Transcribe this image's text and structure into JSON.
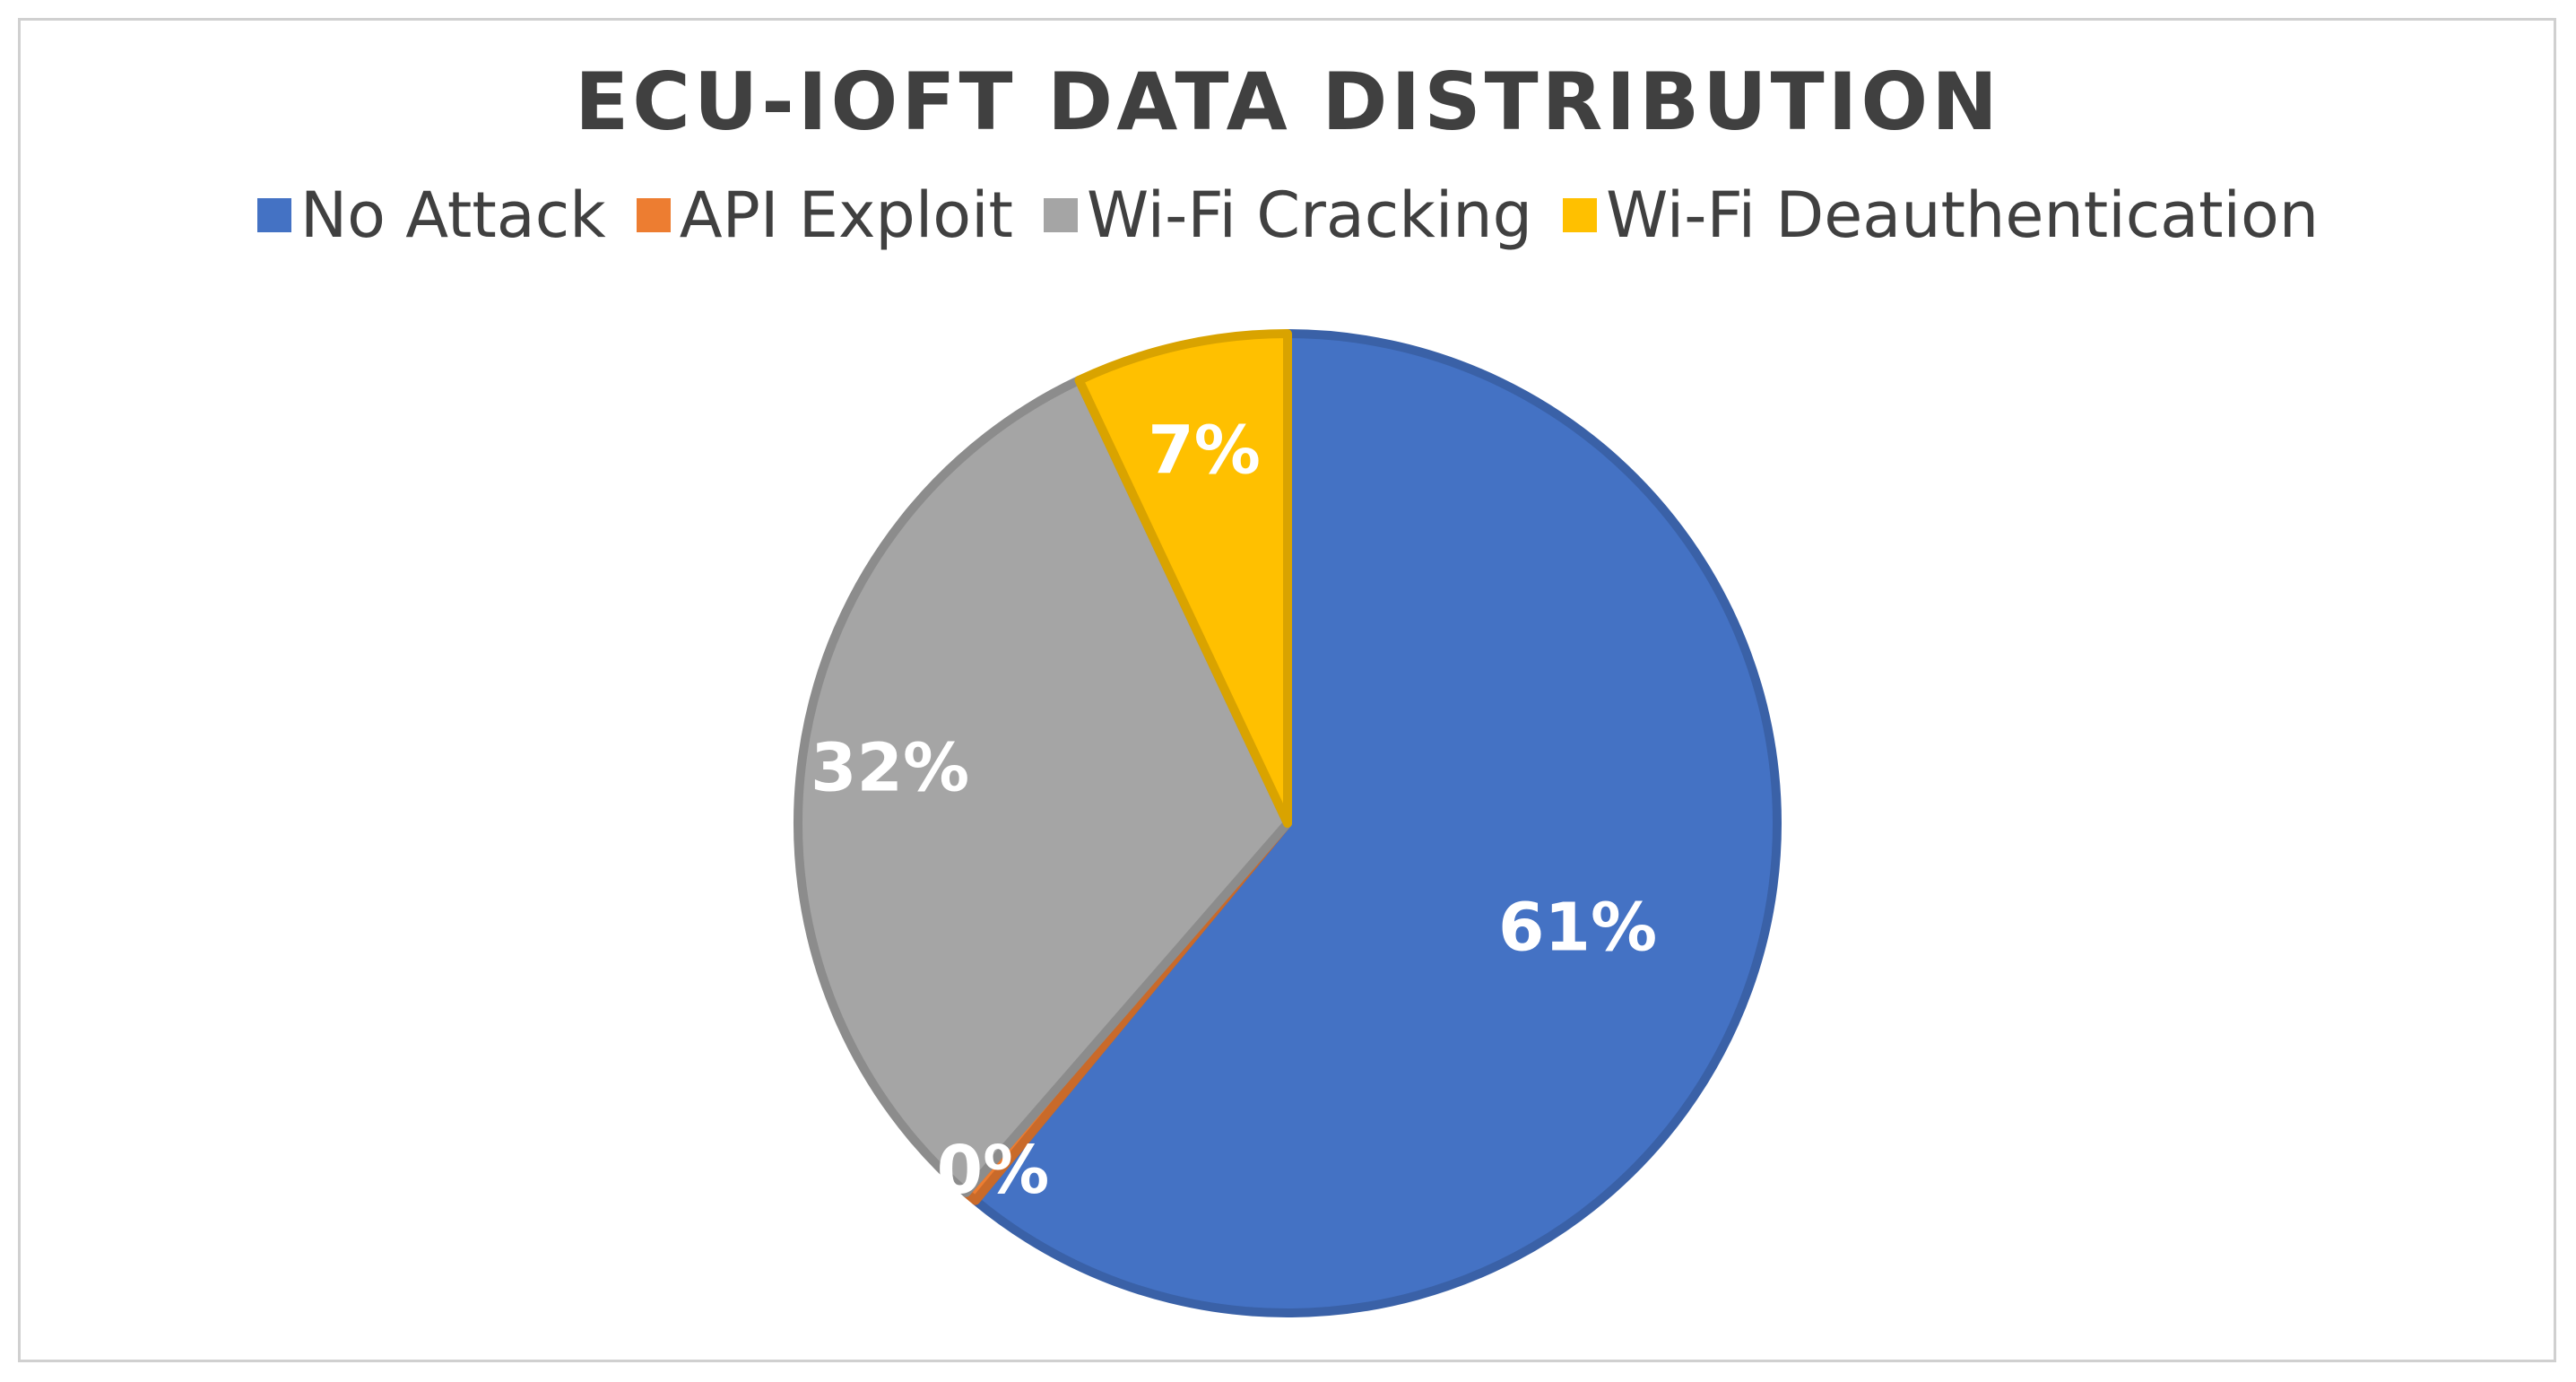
{
  "chart_data": {
    "type": "pie",
    "title": "ECU-IOFT DATA DISTRIBUTION",
    "legend_position": "top",
    "slices": [
      {
        "label": "No Attack",
        "value": 61,
        "display": "61%",
        "color": "#4472C4"
      },
      {
        "label": "API Exploit",
        "value": 0.4,
        "display": "0%",
        "color": "#ED7D31"
      },
      {
        "label": "Wi-Fi Cracking",
        "value": 31.6,
        "display": "32%",
        "color": "#A5A5A5"
      },
      {
        "label": "Wi-Fi Deauthentication",
        "value": 7,
        "display": "7%",
        "color": "#FFC000"
      }
    ]
  }
}
